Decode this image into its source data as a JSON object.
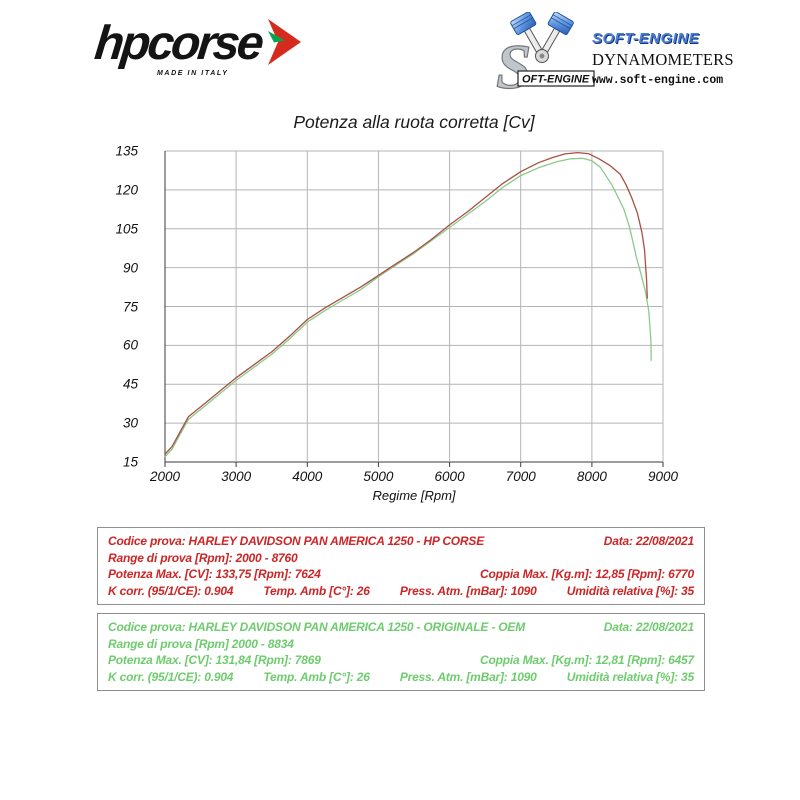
{
  "logos": {
    "hpcorse": {
      "text": "hpcorse",
      "tagline": "MADE IN ITALY",
      "arrow_red": "#d52b1e",
      "arrow_green": "#00a651"
    },
    "softengine": {
      "title": "SOFT-ENGINE",
      "subtitle": "DYNAMOMETERS",
      "url": "www.soft-engine.com",
      "badge": "OFT-ENGINE",
      "blue": "#4a7fd6"
    }
  },
  "chart_data": {
    "type": "line",
    "title": "Potenza alla ruota corretta [Cv]",
    "xlabel": "Regime [Rpm]",
    "ylabel": "",
    "xlim": [
      2000,
      9000
    ],
    "ylim": [
      15,
      135
    ],
    "xticks": [
      2000,
      3000,
      4000,
      5000,
      6000,
      7000,
      8000,
      9000
    ],
    "yticks": [
      15,
      30,
      45,
      60,
      75,
      90,
      105,
      120,
      135
    ],
    "grid": true,
    "legend_position": "none",
    "axis_color": "#3a3a3a",
    "grid_color": "#b4b4b4",
    "series": [
      {
        "name": "ORIGINALE OEM",
        "color": "#8cc98c",
        "points": [
          [
            2000,
            17
          ],
          [
            2100,
            20
          ],
          [
            2200,
            25
          ],
          [
            2330,
            31.5
          ],
          [
            2420,
            33.5
          ],
          [
            2600,
            37.5
          ],
          [
            2800,
            42
          ],
          [
            3000,
            46.5
          ],
          [
            3250,
            51.5
          ],
          [
            3500,
            56.5
          ],
          [
            3750,
            62.5
          ],
          [
            4000,
            69
          ],
          [
            4250,
            73.5
          ],
          [
            4500,
            77.5
          ],
          [
            4750,
            81.5
          ],
          [
            5000,
            86.5
          ],
          [
            5250,
            91
          ],
          [
            5500,
            95.5
          ],
          [
            5750,
            100.5
          ],
          [
            6000,
            105.5
          ],
          [
            6250,
            110.5
          ],
          [
            6500,
            115.5
          ],
          [
            6750,
            121
          ],
          [
            7000,
            125.5
          ],
          [
            7250,
            128.5
          ],
          [
            7500,
            130.8
          ],
          [
            7700,
            132
          ],
          [
            7869,
            132.2
          ],
          [
            8000,
            131.2
          ],
          [
            8120,
            128.7
          ],
          [
            8280,
            122
          ],
          [
            8380,
            116.5
          ],
          [
            8450,
            112.5
          ],
          [
            8520,
            106.5
          ],
          [
            8560,
            102
          ],
          [
            8630,
            93.5
          ],
          [
            8700,
            86.5
          ],
          [
            8760,
            80
          ],
          [
            8800,
            73
          ],
          [
            8830,
            62
          ],
          [
            8834,
            54
          ]
        ]
      },
      {
        "name": "HP CORSE",
        "color": "#a85043",
        "points": [
          [
            2000,
            18
          ],
          [
            2100,
            21
          ],
          [
            2200,
            26
          ],
          [
            2330,
            32.5
          ],
          [
            2420,
            34.5
          ],
          [
            2600,
            38.5
          ],
          [
            2800,
            43
          ],
          [
            3000,
            47.5
          ],
          [
            3250,
            52.5
          ],
          [
            3500,
            57.5
          ],
          [
            3750,
            63.5
          ],
          [
            4000,
            70
          ],
          [
            4250,
            74.5
          ],
          [
            4500,
            78.5
          ],
          [
            4750,
            82.5
          ],
          [
            5000,
            87
          ],
          [
            5250,
            91.5
          ],
          [
            5500,
            96
          ],
          [
            5750,
            101
          ],
          [
            6000,
            106.5
          ],
          [
            6250,
            111.5
          ],
          [
            6500,
            117
          ],
          [
            6750,
            122.5
          ],
          [
            7000,
            127
          ],
          [
            7250,
            130.5
          ],
          [
            7450,
            132.5
          ],
          [
            7624,
            133.9
          ],
          [
            7800,
            134.4
          ],
          [
            7950,
            134
          ],
          [
            8100,
            132
          ],
          [
            8250,
            129.5
          ],
          [
            8400,
            126
          ],
          [
            8480,
            122
          ],
          [
            8560,
            117
          ],
          [
            8640,
            111
          ],
          [
            8700,
            104
          ],
          [
            8740,
            97
          ],
          [
            8770,
            85
          ],
          [
            8780,
            78
          ]
        ]
      }
    ]
  },
  "results": {
    "hpcorse": {
      "accent": "#cc2626",
      "codice": "Codice prova: HARLEY DAVIDSON  PAN AMERICA 1250 - HP CORSE",
      "data": "Data: 22/08/2021",
      "range": "Range di prova  [Rpm]: 2000 - 8760",
      "potenza": "Potenza Max. [CV]:  133,75 [Rpm]: 7624",
      "coppia": "Coppia Max. [Kg.m]:  12,85 [Rpm]: 6770",
      "kcorr": "K corr. (95/1/CE): 0.904",
      "temp": "Temp. Amb [C°]: 26",
      "press": "Press. Atm. [mBar]: 1090",
      "umidita": "Umidità relativa [%]: 35"
    },
    "oem": {
      "accent": "#6ecc6e",
      "codice": "Codice prova: HARLEY DAVIDSON  PAN AMERICA 1250 - ORIGINALE - OEM",
      "data": "Data: 22/08/2021",
      "range": "Range di prova [Rpm] 2000 - 8834",
      "potenza": "Potenza Max. [CV]: 131,84 [Rpm]: 7869",
      "coppia": "Coppia Max. [Kg.m]: 12,81 [Rpm]: 6457",
      "kcorr": "K corr. (95/1/CE): 0.904",
      "temp": "Temp. Amb [C°]: 26",
      "press": "Press. Atm. [mBar]: 1090",
      "umidita": "Umidità relativa [%]: 35"
    }
  }
}
